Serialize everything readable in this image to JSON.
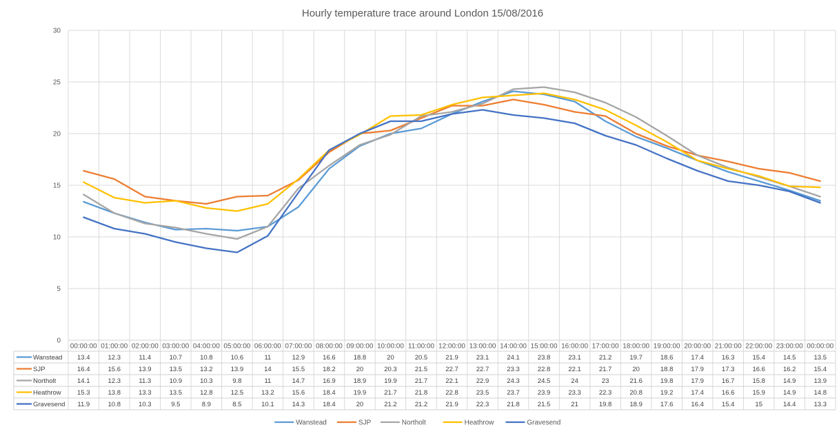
{
  "chart_data": {
    "type": "line",
    "title": "Hourly temperature trace around London 15/08/2016",
    "xlabel": "",
    "ylabel": "",
    "ylim": [
      0,
      30
    ],
    "yticks": [
      0,
      5,
      10,
      15,
      20,
      25,
      30
    ],
    "grid": true,
    "legend_position": "bottom",
    "data_table": true,
    "categories": [
      "00:00:00",
      "01:00:00",
      "02:00:00",
      "03:00:00",
      "04:00:00",
      "05:00:00",
      "06:00:00",
      "07:00:00",
      "08:00:00",
      "09:00:00",
      "10:00:00",
      "11:00:00",
      "12:00:00",
      "13:00:00",
      "14:00:00",
      "15:00:00",
      "16:00:00",
      "17:00:00",
      "18:00:00",
      "19:00:00",
      "20:00:00",
      "21:00:00",
      "22:00:00",
      "23:00:00",
      "00:00:00"
    ],
    "series": [
      {
        "name": "Wanstead",
        "color": "#5b9bd5",
        "values": [
          13.4,
          12.3,
          11.4,
          10.7,
          10.8,
          10.6,
          11,
          12.9,
          16.6,
          18.8,
          20,
          20.5,
          21.9,
          23.1,
          24.1,
          23.8,
          23.1,
          21.2,
          19.7,
          18.6,
          17.4,
          16.3,
          15.4,
          14.5,
          13.5
        ]
      },
      {
        "name": "SJP",
        "color": "#ed7d31",
        "values": [
          16.4,
          15.6,
          13.9,
          13.5,
          13.2,
          13.9,
          14,
          15.5,
          18.2,
          20,
          20.3,
          21.5,
          22.7,
          22.7,
          23.3,
          22.8,
          22.1,
          21.7,
          20,
          18.8,
          17.9,
          17.3,
          16.6,
          16.2,
          15.4
        ]
      },
      {
        "name": "Northolt",
        "color": "#a5a5a5",
        "values": [
          14.1,
          12.3,
          11.3,
          10.9,
          10.3,
          9.8,
          11,
          14.7,
          16.9,
          18.9,
          19.9,
          21.7,
          22.1,
          22.9,
          24.3,
          24.5,
          24,
          23,
          21.6,
          19.8,
          17.9,
          16.7,
          15.8,
          14.9,
          13.9
        ]
      },
      {
        "name": "Heathrow",
        "color": "#ffc000",
        "values": [
          15.3,
          13.8,
          13.3,
          13.5,
          12.8,
          12.5,
          13.2,
          15.6,
          18.4,
          19.9,
          21.7,
          21.8,
          22.8,
          23.5,
          23.7,
          23.9,
          23.3,
          22.3,
          20.8,
          19.2,
          17.4,
          16.6,
          15.9,
          14.9,
          14.8
        ]
      },
      {
        "name": "Gravesend",
        "color": "#4472c4",
        "values": [
          11.9,
          10.8,
          10.3,
          9.5,
          8.9,
          8.5,
          10.1,
          14.3,
          18.4,
          20,
          21.2,
          21.2,
          21.9,
          22.3,
          21.8,
          21.5,
          21,
          19.8,
          18.9,
          17.6,
          16.4,
          15.4,
          15,
          14.4,
          13.3
        ]
      }
    ]
  }
}
